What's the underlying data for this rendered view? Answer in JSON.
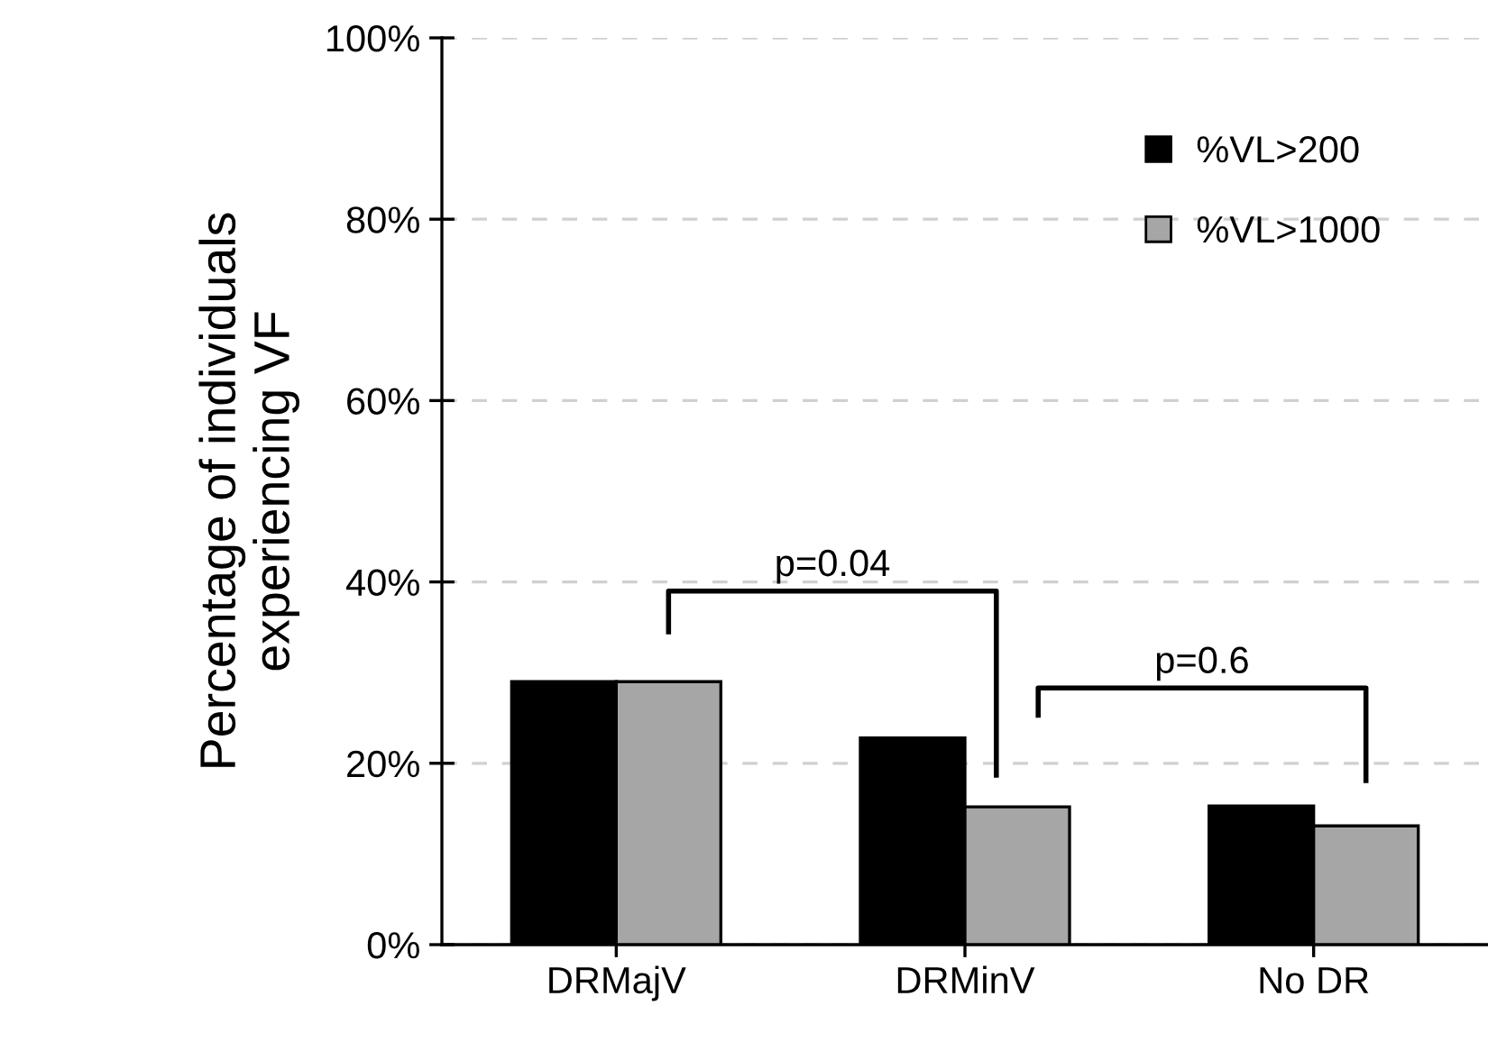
{
  "chart_data": {
    "type": "bar",
    "ylabel": "Percentage of individuals\nexperiencing VF",
    "categories": [
      "DRMajV",
      "DRMinV",
      "No DR"
    ],
    "series": [
      {
        "name": "%VL>200",
        "color": "#000000",
        "values": [
          29.0,
          22.8,
          15.3
        ]
      },
      {
        "name": "%VL>1000",
        "color": "#a6a6a6",
        "values": [
          29.0,
          15.2,
          13.1
        ]
      }
    ],
    "ylim": [
      0,
      100
    ],
    "yticks": [
      {
        "value": 0,
        "label": "0%"
      },
      {
        "value": 20,
        "label": "20%"
      },
      {
        "value": 40,
        "label": "40%"
      },
      {
        "value": 60,
        "label": "60%"
      },
      {
        "value": 80,
        "label": "80%"
      },
      {
        "value": 100,
        "label": "100%"
      }
    ],
    "grid": "y",
    "legend": "top right",
    "annotations": [
      "p=0.04",
      "p=0.6"
    ]
  }
}
